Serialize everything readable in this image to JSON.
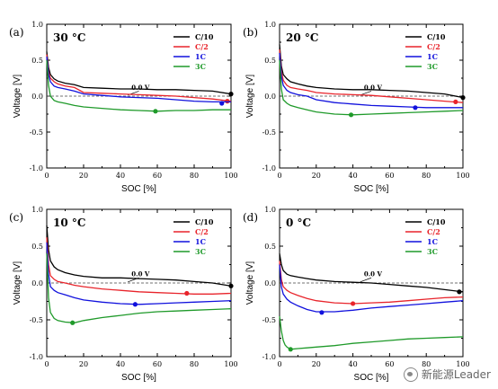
{
  "chart_data": [
    {
      "type": "line",
      "panel_label": "(a)",
      "temperature": "30 °C",
      "xlabel": "SOC [%]",
      "ylabel": "Voltage [V]",
      "xlim": [
        0,
        100
      ],
      "ylim": [
        -1.0,
        1.0
      ],
      "xticks": [
        "0",
        "20",
        "40",
        "60",
        "80",
        "100"
      ],
      "yticks": [
        "1.0",
        "0.5",
        "0.0",
        "-0.5",
        "-1.0"
      ],
      "reference_label": "0.0 V",
      "series": [
        {
          "name": "C/10",
          "color": "#000000",
          "x": [
            0,
            1,
            2,
            4,
            6,
            10,
            15,
            20,
            30,
            40,
            50,
            60,
            70,
            80,
            90,
            100
          ],
          "y": [
            0.62,
            0.4,
            0.3,
            0.24,
            0.21,
            0.18,
            0.16,
            0.12,
            0.11,
            0.1,
            0.1,
            0.09,
            0.09,
            0.08,
            0.07,
            0.03
          ],
          "marker": [
            100,
            0.03
          ]
        },
        {
          "name": "C/2",
          "color": "#e8242b",
          "x": [
            0,
            1,
            2,
            4,
            6,
            10,
            15,
            20,
            30,
            40,
            50,
            60,
            70,
            80,
            90,
            100
          ],
          "y": [
            0.58,
            0.34,
            0.25,
            0.2,
            0.17,
            0.14,
            0.12,
            0.05,
            0.04,
            0.03,
            0.02,
            0.01,
            0.0,
            -0.02,
            -0.04,
            -0.07
          ],
          "marker": [
            98,
            -0.07
          ]
        },
        {
          "name": "1C",
          "color": "#1111dd",
          "x": [
            0,
            1,
            2,
            4,
            6,
            10,
            15,
            20,
            30,
            40,
            50,
            60,
            70,
            80,
            90,
            100
          ],
          "y": [
            0.55,
            0.3,
            0.2,
            0.14,
            0.12,
            0.1,
            0.07,
            0.03,
            0.01,
            -0.01,
            -0.02,
            -0.03,
            -0.05,
            -0.07,
            -0.08,
            -0.08
          ],
          "marker": [
            95,
            -0.1
          ]
        },
        {
          "name": "3C",
          "color": "#1f9a2a",
          "x": [
            0,
            1,
            2,
            4,
            6,
            10,
            15,
            20,
            30,
            40,
            50,
            60,
            70,
            80,
            90,
            100
          ],
          "y": [
            0.5,
            0.15,
            0.0,
            -0.06,
            -0.08,
            -0.1,
            -0.13,
            -0.15,
            -0.17,
            -0.19,
            -0.2,
            -0.21,
            -0.2,
            -0.2,
            -0.19,
            -0.19
          ],
          "marker": [
            59,
            -0.21
          ]
        }
      ]
    },
    {
      "type": "line",
      "panel_label": "(b)",
      "temperature": "20 °C",
      "xlabel": "SOC [%]",
      "ylabel": "Voltage [V]",
      "xlim": [
        0,
        100
      ],
      "ylim": [
        -1.0,
        1.0
      ],
      "xticks": [
        "0",
        "20",
        "40",
        "60",
        "80",
        "100"
      ],
      "yticks": [
        "1.0",
        "0.5",
        "0.0",
        "-0.5",
        "-1.0"
      ],
      "reference_label": "0.0 V",
      "series": [
        {
          "name": "C/10",
          "color": "#000000",
          "x": [
            0,
            1,
            2,
            4,
            6,
            10,
            15,
            20,
            30,
            40,
            50,
            60,
            70,
            80,
            90,
            100
          ],
          "y": [
            0.72,
            0.42,
            0.3,
            0.24,
            0.2,
            0.17,
            0.14,
            0.12,
            0.1,
            0.09,
            0.09,
            0.08,
            0.07,
            0.05,
            0.03,
            -0.02
          ],
          "marker": [
            100,
            -0.02
          ]
        },
        {
          "name": "C/2",
          "color": "#e8242b",
          "x": [
            0,
            1,
            2,
            4,
            6,
            10,
            15,
            20,
            30,
            40,
            50,
            60,
            70,
            80,
            90,
            100
          ],
          "y": [
            0.65,
            0.35,
            0.22,
            0.15,
            0.12,
            0.1,
            0.08,
            0.05,
            0.03,
            0.02,
            0.01,
            -0.01,
            -0.03,
            -0.05,
            -0.07,
            -0.09
          ],
          "marker": [
            96,
            -0.08
          ]
        },
        {
          "name": "1C",
          "color": "#1111dd",
          "x": [
            0,
            1,
            2,
            4,
            6,
            10,
            15,
            20,
            30,
            40,
            50,
            60,
            70,
            80,
            90,
            100
          ],
          "y": [
            0.6,
            0.28,
            0.15,
            0.08,
            0.05,
            0.02,
            0.0,
            -0.05,
            -0.09,
            -0.11,
            -0.13,
            -0.14,
            -0.15,
            -0.16,
            -0.16,
            -0.16
          ],
          "marker": [
            74,
            -0.16
          ]
        },
        {
          "name": "3C",
          "color": "#1f9a2a",
          "x": [
            0,
            1,
            2,
            4,
            6,
            10,
            15,
            20,
            30,
            40,
            50,
            60,
            70,
            80,
            90,
            100
          ],
          "y": [
            0.5,
            0.1,
            -0.05,
            -0.1,
            -0.13,
            -0.16,
            -0.19,
            -0.22,
            -0.25,
            -0.26,
            -0.25,
            -0.24,
            -0.23,
            -0.22,
            -0.21,
            -0.2
          ],
          "marker": [
            39,
            -0.26
          ]
        }
      ]
    },
    {
      "type": "line",
      "panel_label": "(c)",
      "temperature": "10 °C",
      "xlabel": "SOC [%]",
      "ylabel": "Voltage [V]",
      "xlim": [
        0,
        100
      ],
      "ylim": [
        -1.0,
        1.0
      ],
      "xticks": [
        "0",
        "20",
        "40",
        "60",
        "80",
        "100"
      ],
      "yticks": [
        "1.0",
        "0.5",
        "0.0",
        "-0.5",
        "-1.0"
      ],
      "reference_label": "0.0 V",
      "series": [
        {
          "name": "C/10",
          "color": "#000000",
          "x": [
            0,
            1,
            2,
            4,
            6,
            10,
            15,
            20,
            30,
            40,
            50,
            60,
            70,
            80,
            90,
            100
          ],
          "y": [
            0.78,
            0.45,
            0.3,
            0.22,
            0.18,
            0.14,
            0.11,
            0.09,
            0.07,
            0.07,
            0.06,
            0.05,
            0.04,
            0.02,
            0.0,
            -0.04
          ],
          "marker": [
            100,
            -0.04
          ]
        },
        {
          "name": "C/2",
          "color": "#e8242b",
          "x": [
            0,
            1,
            2,
            4,
            6,
            10,
            15,
            20,
            30,
            40,
            50,
            60,
            70,
            80,
            90,
            100
          ],
          "y": [
            0.62,
            0.25,
            0.1,
            0.05,
            0.02,
            0.0,
            -0.03,
            -0.05,
            -0.08,
            -0.1,
            -0.12,
            -0.13,
            -0.14,
            -0.15,
            -0.15,
            -0.14
          ],
          "marker": [
            76,
            -0.14
          ]
        },
        {
          "name": "1C",
          "color": "#1111dd",
          "x": [
            0,
            1,
            2,
            4,
            6,
            10,
            15,
            20,
            30,
            40,
            50,
            60,
            70,
            80,
            90,
            100
          ],
          "y": [
            0.55,
            0.12,
            -0.05,
            -0.1,
            -0.13,
            -0.16,
            -0.2,
            -0.23,
            -0.26,
            -0.28,
            -0.29,
            -0.28,
            -0.27,
            -0.26,
            -0.25,
            -0.24
          ],
          "marker": [
            48,
            -0.29
          ]
        },
        {
          "name": "3C",
          "color": "#1f9a2a",
          "x": [
            0,
            1,
            2,
            4,
            6,
            10,
            15,
            20,
            30,
            40,
            50,
            60,
            70,
            80,
            90,
            100
          ],
          "y": [
            0.4,
            -0.2,
            -0.4,
            -0.48,
            -0.51,
            -0.53,
            -0.54,
            -0.51,
            -0.47,
            -0.44,
            -0.41,
            -0.39,
            -0.38,
            -0.37,
            -0.36,
            -0.35
          ],
          "marker": [
            14,
            -0.54
          ]
        }
      ]
    },
    {
      "type": "line",
      "panel_label": "(d)",
      "temperature": "0 °C",
      "xlabel": "SOC [%]",
      "ylabel": "Voltage [V]",
      "xlim": [
        0,
        100
      ],
      "ylim": [
        -1.0,
        1.0
      ],
      "xticks": [
        "0",
        "20",
        "40",
        "60",
        "80",
        "100"
      ],
      "yticks": [
        "1.0",
        "0.5",
        "0.0",
        "-0.5",
        "-1.0"
      ],
      "reference_label": "0.0 V",
      "series": [
        {
          "name": "C/10",
          "color": "#000000",
          "x": [
            0,
            1,
            2,
            4,
            6,
            10,
            15,
            20,
            30,
            40,
            50,
            60,
            70,
            80,
            90,
            100
          ],
          "y": [
            0.4,
            0.25,
            0.17,
            0.12,
            0.1,
            0.08,
            0.06,
            0.04,
            0.02,
            0.01,
            0.0,
            -0.02,
            -0.04,
            -0.06,
            -0.09,
            -0.12
          ],
          "marker": [
            98,
            -0.12
          ]
        },
        {
          "name": "C/2",
          "color": "#e8242b",
          "x": [
            0,
            1,
            2,
            4,
            6,
            10,
            15,
            20,
            30,
            40,
            50,
            60,
            70,
            80,
            90,
            100
          ],
          "y": [
            0.3,
            0.05,
            -0.05,
            -0.1,
            -0.13,
            -0.17,
            -0.21,
            -0.24,
            -0.27,
            -0.28,
            -0.27,
            -0.26,
            -0.24,
            -0.22,
            -0.2,
            -0.19
          ],
          "marker": [
            40,
            -0.28
          ]
        },
        {
          "name": "1C",
          "color": "#1111dd",
          "x": [
            0,
            1,
            2,
            4,
            6,
            10,
            15,
            20,
            30,
            40,
            50,
            60,
            70,
            80,
            90,
            100
          ],
          "y": [
            0.25,
            -0.05,
            -0.15,
            -0.22,
            -0.26,
            -0.31,
            -0.36,
            -0.39,
            -0.39,
            -0.37,
            -0.34,
            -0.32,
            -0.3,
            -0.28,
            -0.26,
            -0.24
          ],
          "marker": [
            23,
            -0.4
          ]
        },
        {
          "name": "3C",
          "color": "#1f9a2a",
          "x": [
            0,
            1,
            2,
            3,
            4,
            6,
            10,
            15,
            20,
            30,
            40,
            50,
            60,
            70,
            80,
            90,
            100
          ],
          "y": [
            -0.45,
            -0.65,
            -0.78,
            -0.84,
            -0.87,
            -0.9,
            -0.89,
            -0.88,
            -0.87,
            -0.85,
            -0.82,
            -0.8,
            -0.78,
            -0.76,
            -0.75,
            -0.74,
            -0.73
          ],
          "marker": [
            6,
            -0.9
          ]
        }
      ]
    }
  ],
  "watermark": {
    "text": "新能源Leader"
  }
}
